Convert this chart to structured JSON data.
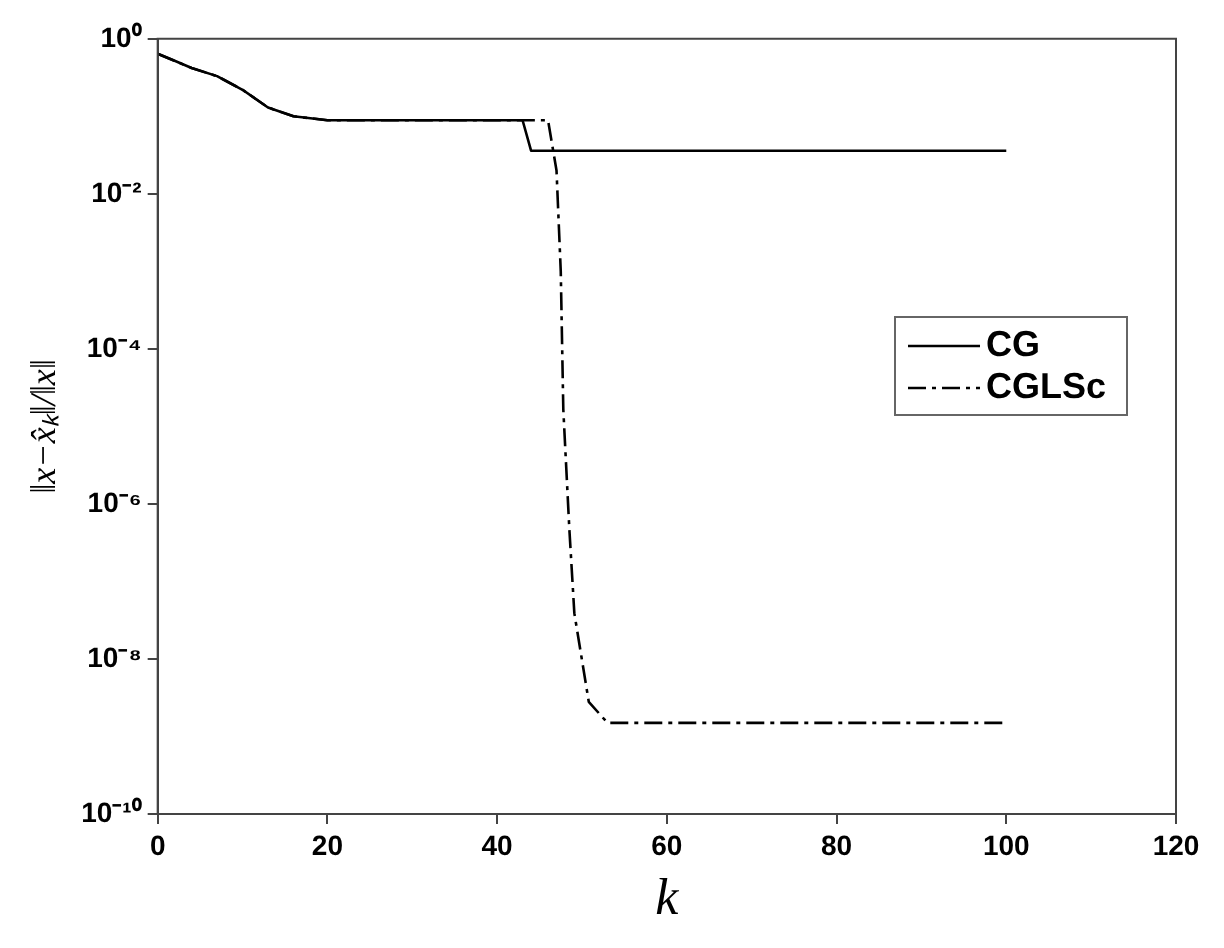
{
  "chart_data": {
    "type": "line",
    "xlabel": "k",
    "ylabel": "‖x−x̂ₖ‖/‖x‖",
    "log": "y",
    "grid": false,
    "legend": "right",
    "marker": "none",
    "xlim": [
      0,
      120
    ],
    "xticks": [
      0,
      20,
      40,
      60,
      80,
      100,
      120
    ],
    "ylim": [
      1e-10,
      1
    ],
    "yticks": [
      {
        "value": 1e-10,
        "label": "10⁻¹⁰"
      },
      {
        "value": 1e-08,
        "label": "10⁻⁸"
      },
      {
        "value": 1e-06,
        "label": "10⁻⁶"
      },
      {
        "value": 0.0001,
        "label": "10⁻⁴"
      },
      {
        "value": 0.01,
        "label": "10⁻²"
      },
      {
        "value": 1,
        "label": "10⁰"
      }
    ],
    "series": [
      {
        "name": "CG",
        "color": "#000000",
        "line_style": "solid",
        "x": [
          0,
          2,
          4,
          7,
          10,
          13,
          16,
          20,
          43,
          44,
          100
        ],
        "values": [
          0.64,
          0.52,
          0.42,
          0.33,
          0.22,
          0.13,
          0.1,
          0.089,
          0.089,
          0.036,
          0.036
        ]
      },
      {
        "name": "CGLSc",
        "color": "#000000",
        "line_style": "dashdot",
        "x": [
          0,
          2,
          4,
          7,
          10,
          13,
          16,
          20,
          46,
          47,
          47.5,
          47.8,
          48.5,
          49.1,
          50.8,
          53,
          100
        ],
        "values": [
          0.64,
          0.52,
          0.42,
          0.33,
          0.22,
          0.13,
          0.1,
          0.089,
          0.089,
          0.02,
          0.001,
          1.66e-05,
          5e-07,
          3.9e-08,
          2.8e-09,
          1.5e-09,
          1.5e-09
        ]
      }
    ]
  }
}
